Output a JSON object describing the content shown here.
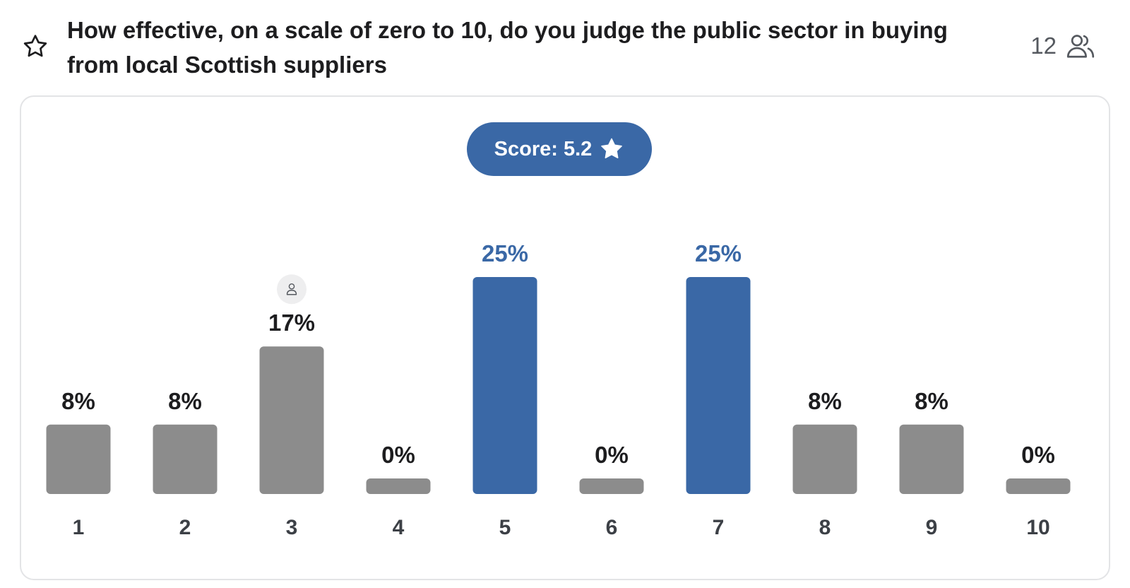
{
  "question": {
    "title": "How effective, on a scale of zero to 10, do you judge the public sector in buying from local Scottish suppliers",
    "responses_count": "12",
    "favorite_icon": "star-outline-icon",
    "responses_icon": "users-icon"
  },
  "score": {
    "label": "Score: 5.2",
    "icon": "star-icon"
  },
  "colors": {
    "highlight": "#3a68a6",
    "bar": "#8c8c8c",
    "label": "#1d1d1f"
  },
  "chart_data": {
    "type": "bar",
    "categories": [
      "1",
      "2",
      "3",
      "4",
      "5",
      "6",
      "7",
      "8",
      "9",
      "10"
    ],
    "values": [
      8,
      8,
      17,
      0,
      25,
      0,
      25,
      8,
      8,
      0
    ],
    "value_labels": [
      "8%",
      "8%",
      "17%",
      "0%",
      "25%",
      "0%",
      "25%",
      "8%",
      "8%",
      "0%"
    ],
    "highlighted": [
      "5",
      "7"
    ],
    "my_response": "3",
    "my_response_icon": "person-icon",
    "unit": "%",
    "ylim": [
      0,
      25
    ],
    "grid": false
  }
}
